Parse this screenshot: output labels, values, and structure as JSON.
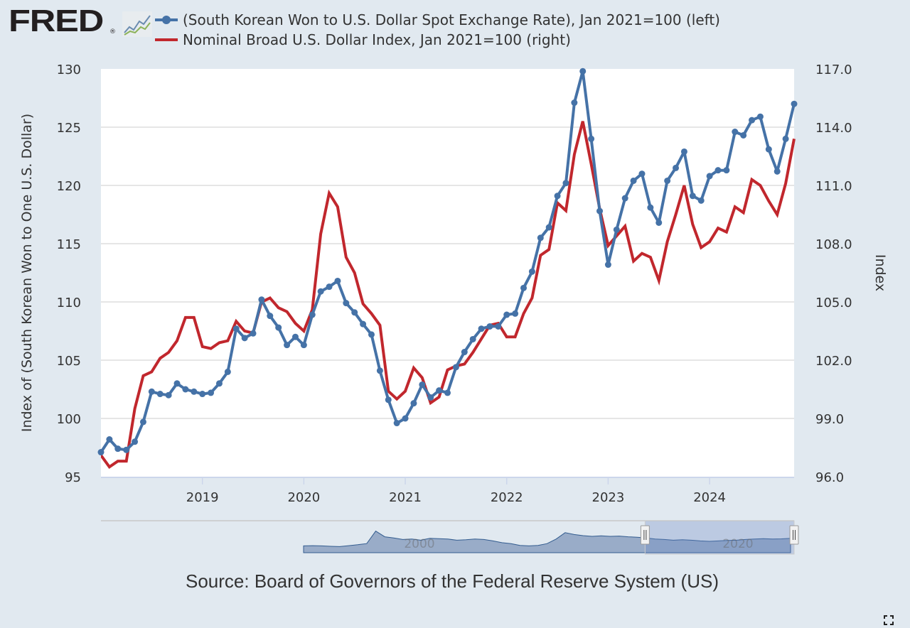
{
  "brand": {
    "name": "FRED",
    "registered_mark": "®",
    "icon": "fred-chart-logo-icon"
  },
  "legend": [
    {
      "label": "(South Korean Won to U.S. Dollar Spot Exchange Rate), Jan 2021=100 (left)",
      "color": "#4572a7",
      "marker": "circle"
    },
    {
      "label": "Nominal Broad U.S. Dollar Index, Jan 2021=100 (right)",
      "color": "#c1272d",
      "marker": "none"
    }
  ],
  "source": "Source: Board of Governors of the Federal Reserve System (US)",
  "controls": {
    "fullscreen_icon": "fullscreen-icon"
  },
  "navigator": {
    "tick_labels": [
      "2000",
      "2020"
    ],
    "selected_range_fraction": [
      0.785,
      1.0
    ]
  },
  "chart_data": {
    "type": "line",
    "title": "",
    "x_start": "2018-01",
    "x_frequency": "monthly",
    "xtick_labels": [
      "2019",
      "2020",
      "2021",
      "2022",
      "2023",
      "2024"
    ],
    "left_axis": {
      "label": "Index of (South Korean Won to One U.S. Dollar)",
      "ylim": [
        95,
        130
      ],
      "ticks": [
        "95",
        "100",
        "105",
        "110",
        "115",
        "120",
        "125",
        "130"
      ]
    },
    "right_axis": {
      "label": "Index",
      "ylim": [
        96,
        117
      ],
      "ticks": [
        "96.0",
        "99.0",
        "102.0",
        "105.0",
        "108.0",
        "111.0",
        "114.0",
        "117.0"
      ]
    },
    "grid": true,
    "legend_position": "top-left",
    "series": [
      {
        "name": "(South Korean Won to U.S. Dollar Spot Exchange Rate), Jan 2021=100 (left)",
        "axis": "left",
        "color": "#4572a7",
        "values": [
          97.1,
          98.2,
          97.4,
          97.3,
          98.0,
          99.7,
          102.3,
          102.1,
          102.0,
          103.0,
          102.5,
          102.3,
          102.1,
          102.2,
          103.0,
          104.0,
          107.7,
          106.9,
          107.3,
          110.2,
          108.8,
          107.8,
          106.3,
          107.0,
          106.3,
          108.9,
          110.9,
          111.3,
          111.8,
          109.9,
          109.1,
          108.1,
          107.2,
          104.1,
          101.6,
          99.6,
          100.0,
          101.3,
          102.9,
          101.8,
          102.4,
          102.2,
          104.4,
          105.7,
          106.8,
          107.7,
          107.9,
          107.9,
          108.9,
          109.0,
          111.2,
          112.6,
          115.5,
          116.4,
          119.1,
          120.2,
          127.1,
          129.8,
          124.0,
          117.8,
          113.2,
          116.2,
          118.9,
          120.4,
          121.0,
          118.1,
          116.8,
          120.4,
          121.5,
          122.9,
          119.1,
          118.7,
          120.8,
          121.3,
          121.3,
          124.6,
          124.3,
          125.6,
          125.9,
          123.1,
          121.2,
          124.0,
          127.0
        ]
      },
      {
        "name": "Nominal Broad U.S. Dollar Index, Jan 2021=100 (right)",
        "axis": "right",
        "color": "#c1272d",
        "values": [
          97.1,
          96.5,
          96.8,
          96.8,
          99.5,
          101.2,
          101.4,
          102.1,
          102.4,
          103.0,
          104.2,
          104.2,
          102.7,
          102.6,
          102.9,
          103.0,
          104.0,
          103.5,
          103.4,
          105.0,
          105.2,
          104.7,
          104.5,
          103.9,
          103.5,
          104.6,
          108.5,
          110.6,
          109.9,
          107.3,
          106.5,
          104.9,
          104.4,
          103.8,
          100.4,
          100.0,
          100.4,
          101.6,
          101.1,
          99.8,
          100.1,
          101.5,
          101.7,
          101.8,
          102.4,
          103.1,
          103.8,
          103.9,
          103.2,
          103.2,
          104.4,
          105.2,
          107.4,
          107.7,
          110.1,
          109.7,
          112.6,
          114.3,
          112.1,
          109.8,
          107.9,
          108.4,
          108.9,
          107.1,
          107.5,
          107.3,
          106.1,
          108.1,
          109.5,
          111.0,
          109.0,
          107.8,
          108.1,
          108.8,
          108.6,
          109.9,
          109.6,
          111.3,
          111.0,
          110.2,
          109.5,
          111.1,
          113.4
        ]
      }
    ]
  }
}
